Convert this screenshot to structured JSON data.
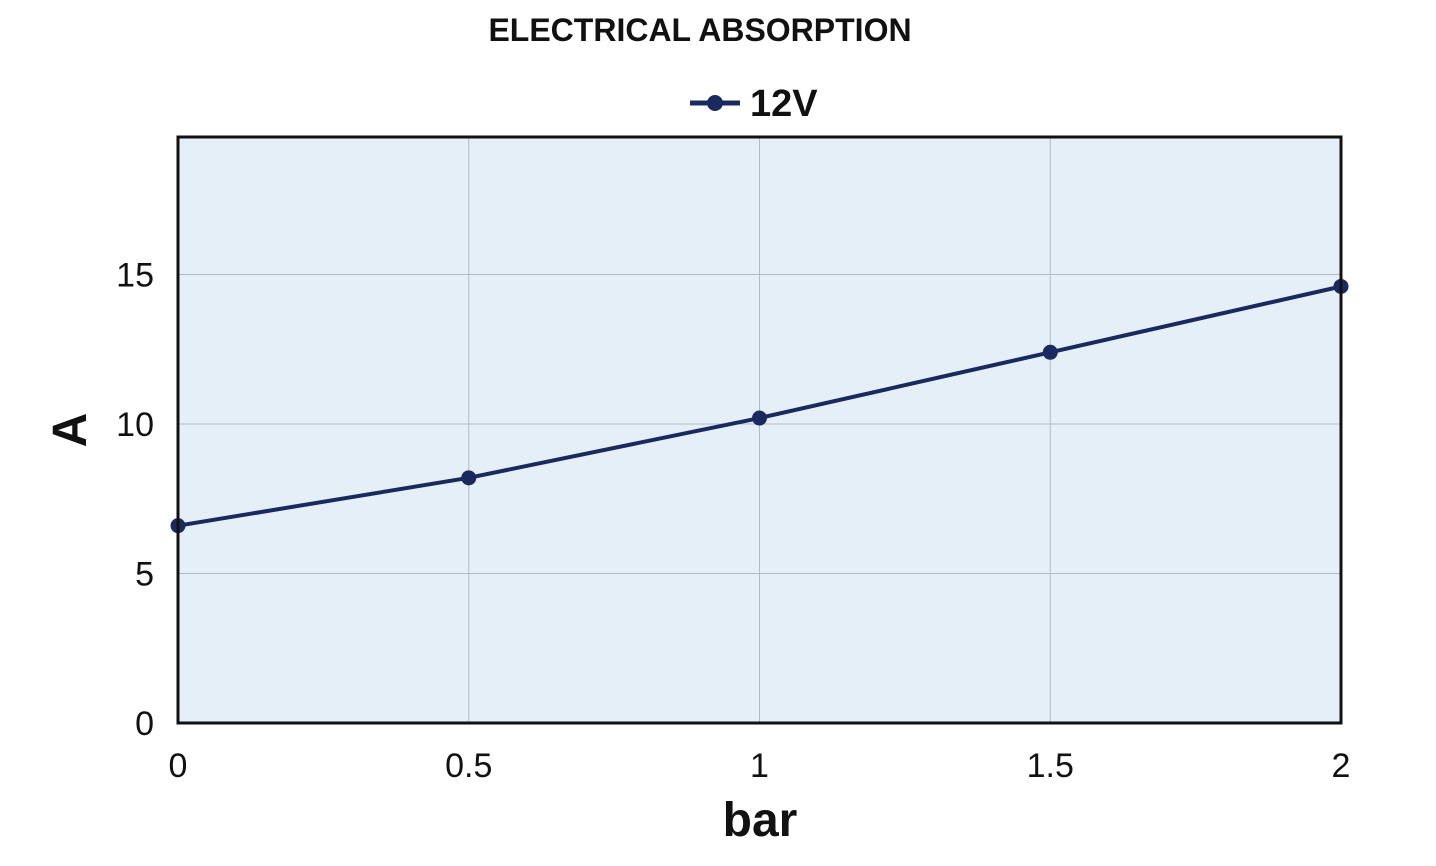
{
  "chart_data": {
    "type": "line",
    "title": "ELECTRICAL ABSORPTION",
    "xlabel": "bar",
    "ylabel": "A",
    "x": [
      0,
      0.5,
      1,
      1.5,
      2
    ],
    "xticks": [
      "0",
      "0.5",
      "1",
      "1.5",
      "2"
    ],
    "yticks": [
      "0",
      "5",
      "10",
      "15"
    ],
    "xlim": [
      0,
      2
    ],
    "ylim": [
      0,
      19.6
    ],
    "grid": true,
    "legend_position": "top-center",
    "series": [
      {
        "name": "12V",
        "values": [
          6.6,
          8.2,
          10.2,
          12.4,
          14.6
        ],
        "color": "#1b2a5e"
      }
    ],
    "plot_background": "#e4eff7",
    "grid_color": "#b3bcc4"
  }
}
